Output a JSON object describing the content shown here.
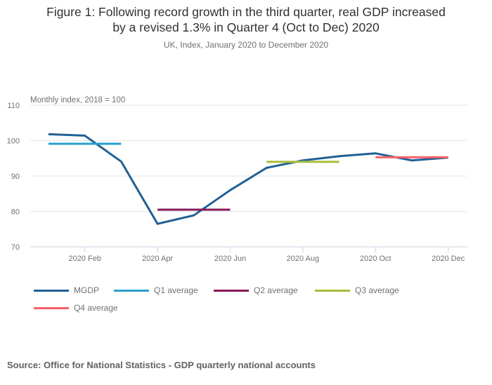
{
  "chart_data": {
    "type": "line",
    "title": "Figure 1: Following record growth in the third quarter, real GDP increased by a revised 1.3% in Quarter 4 (Oct to Dec) 2020",
    "title_lines": [
      "Figure 1: Following record growth in the third quarter, real GDP increased",
      "by a revised 1.3% in Quarter 4 (Oct to Dec) 2020"
    ],
    "subtitle": "UK, Index, January 2020 to December 2020",
    "ylabel": "Monthly index, 2018 = 100",
    "xlabel": "",
    "ylim": [
      70,
      110
    ],
    "yticks": [
      70,
      80,
      90,
      100,
      110
    ],
    "grid": true,
    "x": [
      "2020 Jan",
      "2020 Feb",
      "2020 Mar",
      "2020 Apr",
      "2020 May",
      "2020 Jun",
      "2020 Jul",
      "2020 Aug",
      "2020 Sep",
      "2020 Oct",
      "2020 Nov",
      "2020 Dec"
    ],
    "xtick_labels": [
      "2020 Feb",
      "2020 Apr",
      "2020 Jun",
      "2020 Aug",
      "2020 Oct",
      "2020 Dec"
    ],
    "xtick_indices": [
      1,
      3,
      5,
      7,
      9,
      11
    ],
    "series": [
      {
        "name": "MGDP",
        "color": "#206095",
        "values": [
          101.8,
          101.4,
          94.1,
          76.5,
          78.9,
          86.0,
          92.3,
          94.4,
          95.6,
          96.4,
          94.4,
          95.2
        ]
      },
      {
        "name": "Q1 average",
        "color": "#27a0cc",
        "segment": [
          0,
          2
        ],
        "value": 99.1
      },
      {
        "name": "Q2 average",
        "color": "#871a5b",
        "segment": [
          3,
          5
        ],
        "value": 80.5
      },
      {
        "name": "Q3 average",
        "color": "#a8bd3a",
        "segment": [
          6,
          8
        ],
        "value": 94.0
      },
      {
        "name": "Q4 average",
        "color": "#f66068",
        "segment": [
          9,
          11
        ],
        "value": 95.3
      }
    ],
    "legend_placement": "bottom"
  },
  "source": "Source: Office for National Statistics - GDP quarterly national accounts"
}
